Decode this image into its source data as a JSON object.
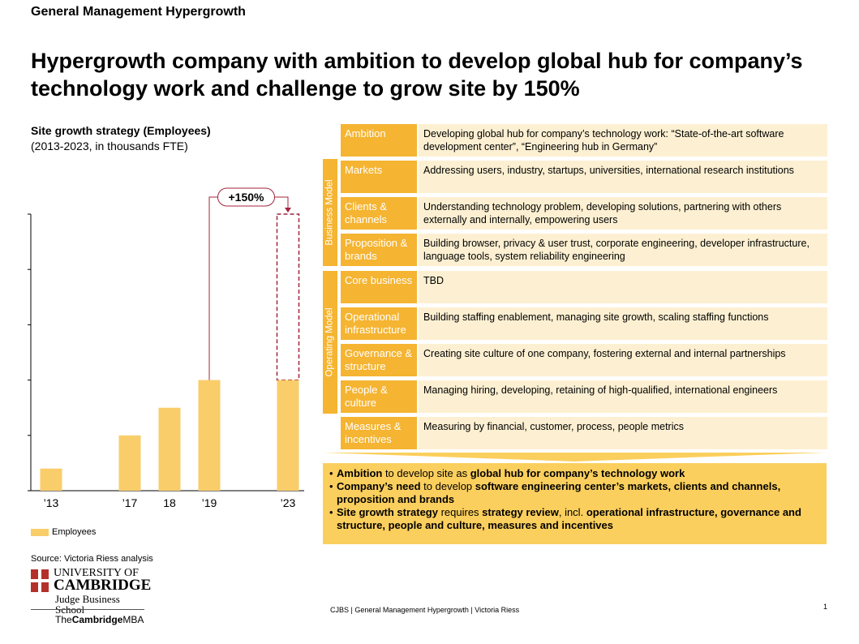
{
  "header": {
    "section": "General Management Hypergrowth",
    "title": "Hypergrowth company with ambition to develop global hub for company’s technology work and challenge to grow site by 150%"
  },
  "chart_data": {
    "type": "bar",
    "title": "Site growth strategy (Employees)",
    "subtitle": "(2013-2023, in thousands FTE)",
    "categories": [
      "’13",
      "’17",
      "18",
      "’19",
      "’23"
    ],
    "values": [
      0.4,
      1.0,
      1.5,
      2.0,
      2.0
    ],
    "target_values": [
      null,
      null,
      null,
      null,
      5.0
    ],
    "ylim": [
      0,
      5
    ],
    "series": [
      {
        "name": "Employees",
        "values": [
          0.4,
          1.0,
          1.5,
          2.0,
          2.0
        ]
      }
    ],
    "annotation": "+150%",
    "colors": {
      "bar": "#f9cd6a",
      "target": "#a3243b"
    }
  },
  "source": "Source: Victoria Riess analysis",
  "groups": {
    "business": "Business Model",
    "operating": "Operating Model"
  },
  "rows": [
    {
      "label": "Ambition",
      "desc": "Developing  global hub for company’s technology work: “State-of-the-art  software development  center”, “Engineering hub in Germany”"
    },
    {
      "label": "Markets",
      "desc": "Addressing users, industry, startups, universities,  international research institutions"
    },
    {
      "label": "Clients & channels",
      "desc": "Understanding technology problem, developing solutions, partnering with others externally and internally,  empowering  users"
    },
    {
      "label": "Proposition & brands",
      "desc": "Building browser,  privacy & user trust, corporate engineering,  developer infrastructure,  language tools, system reliability engineering"
    },
    {
      "label": "Core business",
      "desc": "TBD"
    },
    {
      "label": "Operational infrastructure",
      "desc": "Building staffing enablement,  managing site growth,  scaling staffing functions"
    },
    {
      "label": "Governance & structure",
      "desc": "Creating site culture of one company, fostering external and internal partnerships"
    },
    {
      "label": "People & culture",
      "desc": "Managing hiring, developing,  retaining of high-qualified,  international engineers"
    },
    {
      "label": "Measures & incentives",
      "desc": "Measuring by financial,  customer, process,  people metrics"
    }
  ],
  "summary": {
    "b1_bold1": "Ambition",
    "b1_text1": " to develop  site as ",
    "b1_bold2": "global hub for company’s technology work",
    "b2_bold1": "Company’s need",
    "b2_text1": " to develop  ",
    "b2_bold2": "software engineering center’s markets, clients and channels, proposition  and brands",
    "b3_bold1": "Site growth strategy",
    "b3_text1": " requires ",
    "b3_bold2": "strategy review",
    "b3_text2": ", incl. ",
    "b3_bold3": "operational infrastructure, governance and structure,  people and culture, measures and incentives"
  },
  "logo": {
    "line1": "UNIVERSITY OF",
    "line2": "CAMBRIDGE",
    "line3": "Judge Business School",
    "mba_the": "The",
    "mba_cambridge": "Cambridge",
    "mba_mba": "MBA"
  },
  "footer": "CJBS | General Management Hypergrowth | Victoria Riess",
  "page_number": "1"
}
